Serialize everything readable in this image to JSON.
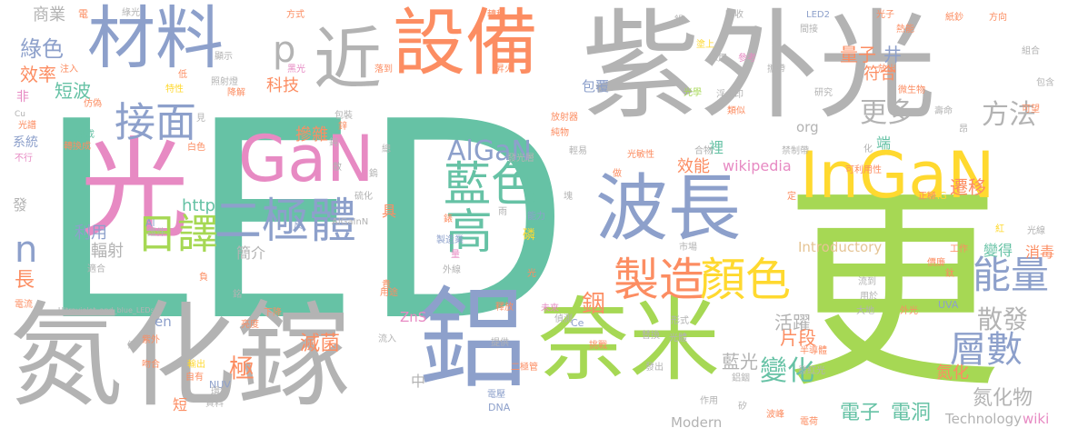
{
  "colors": {
    "gray": "#b3b3b3",
    "teal": "#66c2a5",
    "orange": "#fc8d62",
    "blue": "#8da0cb",
    "pink": "#e78ac3",
    "green": "#a6d854",
    "yellow": "#ffd92f",
    "tan": "#e5c494"
  },
  "words": [
    {
      "t": "LED",
      "c": "teal"
    },
    {
      "t": "紫外光",
      "c": "gray"
    },
    {
      "t": "光",
      "c": "pink"
    },
    {
      "t": "氮化鎵",
      "c": "gray"
    },
    {
      "t": "更",
      "c": "green"
    },
    {
      "t": "奈米",
      "c": "green"
    },
    {
      "t": "鋁",
      "c": "blue"
    },
    {
      "t": "設備",
      "c": "orange"
    },
    {
      "t": "材料",
      "c": "blue"
    },
    {
      "t": "近",
      "c": "gray"
    },
    {
      "t": "InGaN",
      "c": "yellow"
    },
    {
      "t": "GaN",
      "c": "pink"
    },
    {
      "t": "波長",
      "c": "blue"
    },
    {
      "t": "二極體",
      "c": "blue"
    },
    {
      "t": "藍色",
      "c": "teal"
    },
    {
      "t": "高",
      "c": "teal"
    },
    {
      "t": "製造",
      "c": "orange"
    },
    {
      "t": "顏色",
      "c": "yellow"
    },
    {
      "t": "接面",
      "c": "blue"
    },
    {
      "t": "日譯",
      "c": "green"
    },
    {
      "t": "能量",
      "c": "blue"
    },
    {
      "t": "層數",
      "c": "blue"
    },
    {
      "t": "AlGaN",
      "c": "blue"
    },
    {
      "t": "n",
      "c": "blue"
    },
    {
      "t": "p",
      "c": "gray"
    },
    {
      "t": "綠色",
      "c": "blue"
    },
    {
      "t": "效率",
      "c": "orange"
    },
    {
      "t": "商業",
      "c": "gray"
    },
    {
      "t": "方法",
      "c": "gray"
    },
    {
      "t": "更多",
      "c": "gray"
    },
    {
      "t": "量子",
      "c": "orange"
    },
    {
      "t": "井",
      "c": "blue"
    },
    {
      "t": "符合",
      "c": "orange"
    },
    {
      "t": "散發",
      "c": "gray"
    },
    {
      "t": "變化",
      "c": "teal"
    },
    {
      "t": "電子",
      "c": "teal"
    },
    {
      "t": "電洞",
      "c": "teal"
    },
    {
      "t": "氮化物",
      "c": "gray"
    },
    {
      "t": "極",
      "c": "orange"
    },
    {
      "t": "滅菌",
      "c": "orange"
    },
    {
      "t": "摻雜",
      "c": "orange"
    },
    {
      "t": "銦",
      "c": "orange"
    },
    {
      "t": "短波",
      "c": "teal"
    },
    {
      "t": "輻射",
      "c": "gray"
    },
    {
      "t": "利用",
      "c": "blue"
    },
    {
      "t": "http",
      "c": "teal"
    },
    {
      "t": "科技",
      "c": "orange"
    },
    {
      "t": "遷移",
      "c": "orange"
    },
    {
      "t": "活躍",
      "c": "gray"
    },
    {
      "t": "片段",
      "c": "orange"
    },
    {
      "t": "藍光",
      "c": "gray"
    },
    {
      "t": "效能",
      "c": "orange"
    },
    {
      "t": "wikipedia",
      "c": "pink"
    },
    {
      "t": "Technology",
      "c": "gray"
    },
    {
      "t": "wiki",
      "c": "pink"
    },
    {
      "t": "Modern",
      "c": "gray"
    },
    {
      "t": "Introductory",
      "c": "tan"
    },
    {
      "t": "ZnS",
      "c": "pink"
    },
    {
      "t": "en",
      "c": "blue"
    },
    {
      "t": "org",
      "c": "gray"
    },
    {
      "t": "簡介",
      "c": "gray"
    },
    {
      "t": "具",
      "c": "orange"
    },
    {
      "t": "變得",
      "c": "teal"
    },
    {
      "t": "消毒",
      "c": "orange"
    },
    {
      "t": "端",
      "c": "teal"
    },
    {
      "t": "裡",
      "c": "teal"
    },
    {
      "t": "包覆",
      "c": "blue"
    },
    {
      "t": "系統",
      "c": "blue"
    },
    {
      "t": "長",
      "c": "orange"
    },
    {
      "t": "發",
      "c": "gray"
    },
    {
      "t": "非",
      "c": "pink"
    },
    {
      "t": "中",
      "c": "gray"
    },
    {
      "t": "短",
      "c": "orange"
    },
    {
      "t": "氮化",
      "c": "orange"
    },
    {
      "t": "磷",
      "c": "yellow"
    },
    {
      "t": "Ultraviolet_and_blue_LEDs",
      "c": "gray"
    },
    {
      "t": "AlGaInN",
      "c": "gray"
    },
    {
      "t": "DNA",
      "c": "blue"
    },
    {
      "t": "UVA",
      "c": "blue"
    },
    {
      "t": "NUV",
      "c": "blue"
    },
    {
      "t": "YAG",
      "c": "yellow"
    },
    {
      "t": "LED2",
      "c": "blue"
    },
    {
      "t": "Ce",
      "c": "blue"
    },
    {
      "t": "Al",
      "c": "blue"
    },
    {
      "t": "Cu",
      "c": "gray"
    },
    {
      "t": "電",
      "c": "orange"
    },
    {
      "t": "綠光",
      "c": "gray"
    },
    {
      "t": "方式",
      "c": "orange"
    },
    {
      "t": "轉移",
      "c": "orange"
    },
    {
      "t": "吸收",
      "c": "gray"
    },
    {
      "t": "間接",
      "c": "gray"
    },
    {
      "t": "光子",
      "c": "orange"
    },
    {
      "t": "熱能",
      "c": "orange"
    },
    {
      "t": "紙鈔",
      "c": "orange"
    },
    {
      "t": "方向",
      "c": "orange"
    },
    {
      "t": "組合",
      "c": "gray"
    },
    {
      "t": "包含",
      "c": "gray"
    },
    {
      "t": "塗上",
      "c": "yellow"
    },
    {
      "t": "採用",
      "c": "gray"
    },
    {
      "t": "參考",
      "c": "pink"
    },
    {
      "t": "攜帶",
      "c": "gray"
    },
    {
      "t": "放出",
      "c": "orange"
    },
    {
      "t": "昇火",
      "c": "orange"
    },
    {
      "t": "落到",
      "c": "orange"
    },
    {
      "t": "黑光",
      "c": "pink"
    },
    {
      "t": "顯示",
      "c": "gray"
    },
    {
      "t": "低",
      "c": "orange"
    },
    {
      "t": "注入",
      "c": "orange"
    },
    {
      "t": "特性",
      "c": "yellow"
    },
    {
      "t": "照射燈",
      "c": "gray"
    },
    {
      "t": "降解",
      "c": "orange"
    },
    {
      "t": "光學",
      "c": "green"
    },
    {
      "t": "浮水印",
      "c": "gray"
    },
    {
      "t": "研究",
      "c": "gray"
    },
    {
      "t": "微生物",
      "c": "orange"
    },
    {
      "t": "壽命",
      "c": "gray"
    },
    {
      "t": "可望",
      "c": "orange"
    },
    {
      "t": "昂",
      "c": "gray"
    },
    {
      "t": "仿偽",
      "c": "orange"
    },
    {
      "t": "光譜",
      "c": "orange"
    },
    {
      "t": "達成",
      "c": "teal"
    },
    {
      "t": "轉換成",
      "c": "orange"
    },
    {
      "t": "不行",
      "c": "pink"
    },
    {
      "t": "白色",
      "c": "orange"
    },
    {
      "t": "包裝",
      "c": "gray"
    },
    {
      "t": "放射器",
      "c": "orange"
    },
    {
      "t": "純物",
      "c": "orange"
    },
    {
      "t": "輕易",
      "c": "gray"
    },
    {
      "t": "類似",
      "c": "orange"
    },
    {
      "t": "合物",
      "c": "gray"
    },
    {
      "t": "禁制帶",
      "c": "gray"
    },
    {
      "t": "可利用性",
      "c": "orange"
    },
    {
      "t": "發光層",
      "c": "gray"
    },
    {
      "t": "光敏性",
      "c": "orange"
    },
    {
      "t": "正極",
      "c": "orange"
    },
    {
      "t": "光線",
      "c": "gray"
    },
    {
      "t": "紅",
      "c": "yellow"
    },
    {
      "t": "工作",
      "c": "orange"
    },
    {
      "t": "價廉",
      "c": "orange"
    },
    {
      "t": "市場",
      "c": "gray"
    },
    {
      "t": "製造業",
      "c": "blue"
    },
    {
      "t": "外線",
      "c": "gray"
    },
    {
      "t": "能力",
      "c": "blue"
    },
    {
      "t": "證件",
      "c": "gray"
    },
    {
      "t": "硫化",
      "c": "gray"
    },
    {
      "t": "量",
      "c": "pink"
    },
    {
      "t": "用途",
      "c": "orange"
    },
    {
      "t": "釋放",
      "c": "orange"
    },
    {
      "t": "未來",
      "c": "pink"
    },
    {
      "t": "偵測",
      "c": "gray"
    },
    {
      "t": "替換",
      "c": "gray"
    },
    {
      "t": "形式",
      "c": "gray"
    },
    {
      "t": "流到",
      "c": "gray"
    },
    {
      "t": "用於",
      "c": "gray"
    },
    {
      "t": "大地",
      "c": "gray"
    },
    {
      "t": "外光",
      "c": "orange"
    },
    {
      "t": "半導體",
      "c": "orange"
    },
    {
      "t": "發紅光",
      "c": "gray"
    },
    {
      "t": "鋁銦",
      "c": "gray"
    },
    {
      "t": "作用",
      "c": "gray"
    },
    {
      "t": "波峰",
      "c": "orange"
    },
    {
      "t": "電荷",
      "c": "orange"
    },
    {
      "t": "矽",
      "c": "gray"
    },
    {
      "t": "電壓",
      "c": "blue"
    },
    {
      "t": "提供",
      "c": "gray"
    },
    {
      "t": "挑戰",
      "c": "orange"
    },
    {
      "t": "二極管",
      "c": "orange"
    },
    {
      "t": "發出",
      "c": "gray"
    },
    {
      "t": "光體",
      "c": "gray"
    },
    {
      "t": "流入",
      "c": "gray"
    },
    {
      "t": "下降",
      "c": "orange"
    },
    {
      "t": "亮度",
      "c": "orange"
    },
    {
      "t": "資料",
      "c": "gray"
    },
    {
      "t": "吻合",
      "c": "orange"
    },
    {
      "t": "輸出",
      "c": "yellow"
    },
    {
      "t": "環氧",
      "c": "gray"
    },
    {
      "t": "紫外",
      "c": "orange"
    },
    {
      "t": "適合",
      "c": "gray"
    },
    {
      "t": "電流",
      "c": "orange"
    },
    {
      "t": "似",
      "c": "gray"
    },
    {
      "t": "自有",
      "c": "orange"
    },
    {
      "t": "負",
      "c": "orange"
    },
    {
      "t": "銘",
      "c": "gray"
    },
    {
      "t": "貴",
      "c": "orange"
    },
    {
      "t": "光",
      "c": "orange"
    },
    {
      "t": "雨",
      "c": "gray"
    },
    {
      "t": "錶",
      "c": "orange"
    },
    {
      "t": "鈍",
      "c": "gray"
    },
    {
      "t": "散",
      "c": "gray"
    },
    {
      "t": "鋅",
      "c": "orange"
    },
    {
      "t": "定",
      "c": "orange"
    },
    {
      "t": "做",
      "c": "orange"
    },
    {
      "t": "化",
      "c": "gray"
    },
    {
      "t": "見",
      "c": "gray"
    },
    {
      "t": "反",
      "c": "blue"
    },
    {
      "t": "鈦",
      "c": "orange"
    },
    {
      "t": "總",
      "c": "gray"
    },
    {
      "t": "鎢",
      "c": "gray"
    },
    {
      "t": "塊",
      "c": "gray"
    },
    {
      "t": "鍋",
      "c": "gray"
    }
  ]
}
